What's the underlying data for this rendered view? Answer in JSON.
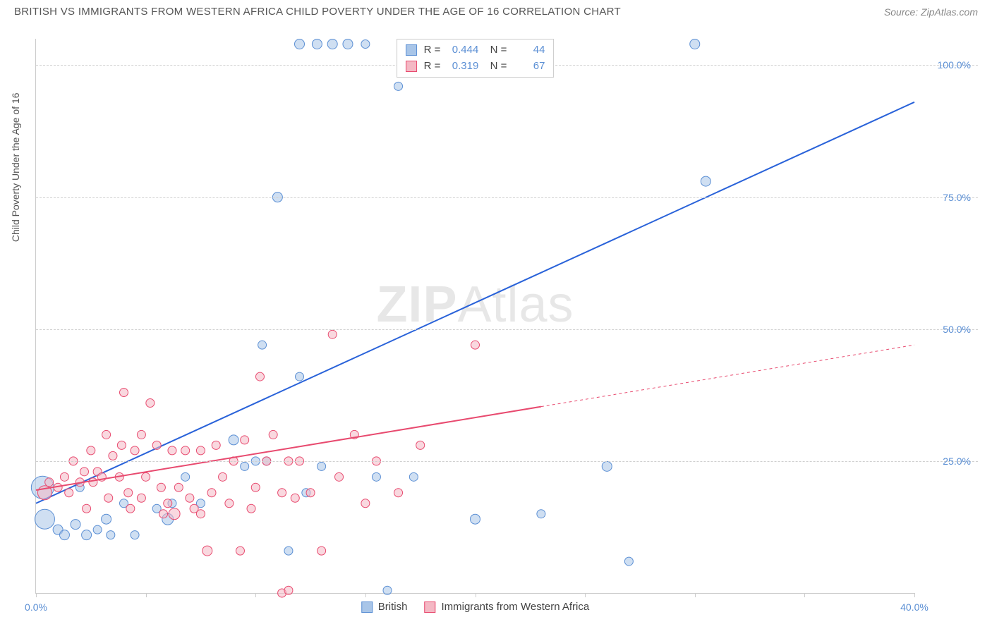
{
  "title": "BRITISH VS IMMIGRANTS FROM WESTERN AFRICA CHILD POVERTY UNDER THE AGE OF 16 CORRELATION CHART",
  "source": "Source: ZipAtlas.com",
  "watermark_prefix": "ZIP",
  "watermark_suffix": "Atlas",
  "y_axis_label": "Child Poverty Under the Age of 16",
  "chart": {
    "type": "scatter",
    "background_color": "#ffffff",
    "grid_color": "#d0d0d0",
    "axis_color": "#cccccc",
    "xlim": [
      0,
      40
    ],
    "ylim": [
      0,
      105
    ],
    "x_ticks": [
      0,
      5,
      10,
      15,
      20,
      25,
      30,
      35,
      40
    ],
    "x_tick_labels": {
      "0": "0.0%",
      "40": "40.0%"
    },
    "y_ticks": [
      25,
      50,
      75,
      100
    ],
    "y_tick_labels": {
      "25": "25.0%",
      "50": "50.0%",
      "75": "75.0%",
      "100": "100.0%"
    },
    "tick_label_color": "#5b8fd4",
    "tick_fontsize": 14,
    "series": [
      {
        "name": "British",
        "marker_fill": "#a8c5e8",
        "marker_stroke": "#5b8fd4",
        "marker_opacity": 0.55,
        "line_color": "#2962d9",
        "line_width": 2,
        "R": "0.444",
        "N": "44",
        "trend": {
          "x1": 0,
          "y1": 17,
          "x2": 40,
          "y2": 93,
          "dash_from_x": 40
        },
        "points": [
          {
            "x": 0.3,
            "y": 20,
            "r": 16
          },
          {
            "x": 0.4,
            "y": 14,
            "r": 14
          },
          {
            "x": 1.0,
            "y": 12,
            "r": 7
          },
          {
            "x": 1.3,
            "y": 11,
            "r": 7
          },
          {
            "x": 1.8,
            "y": 13,
            "r": 7
          },
          {
            "x": 2.0,
            "y": 20,
            "r": 6
          },
          {
            "x": 2.3,
            "y": 11,
            "r": 7
          },
          {
            "x": 2.8,
            "y": 12,
            "r": 6
          },
          {
            "x": 3.2,
            "y": 14,
            "r": 7
          },
          {
            "x": 3.4,
            "y": 11,
            "r": 6
          },
          {
            "x": 4.0,
            "y": 17,
            "r": 6
          },
          {
            "x": 4.5,
            "y": 11,
            "r": 6
          },
          {
            "x": 5.5,
            "y": 16,
            "r": 6
          },
          {
            "x": 6.0,
            "y": 14,
            "r": 8
          },
          {
            "x": 6.2,
            "y": 17,
            "r": 6
          },
          {
            "x": 6.8,
            "y": 22,
            "r": 6
          },
          {
            "x": 7.5,
            "y": 17,
            "r": 6
          },
          {
            "x": 9.0,
            "y": 29,
            "r": 7
          },
          {
            "x": 9.5,
            "y": 24,
            "r": 6
          },
          {
            "x": 10.0,
            "y": 25,
            "r": 6
          },
          {
            "x": 10.3,
            "y": 47,
            "r": 6
          },
          {
            "x": 10.5,
            "y": 25,
            "r": 6
          },
          {
            "x": 11.0,
            "y": 75,
            "r": 7
          },
          {
            "x": 11.5,
            "y": 8,
            "r": 6
          },
          {
            "x": 12.0,
            "y": 41,
            "r": 6
          },
          {
            "x": 12.3,
            "y": 19,
            "r": 6
          },
          {
            "x": 12.0,
            "y": 104,
            "r": 7
          },
          {
            "x": 12.8,
            "y": 104,
            "r": 7
          },
          {
            "x": 13.5,
            "y": 104,
            "r": 7
          },
          {
            "x": 14.2,
            "y": 104,
            "r": 7
          },
          {
            "x": 15.0,
            "y": 104,
            "r": 6
          },
          {
            "x": 15.5,
            "y": 22,
            "r": 6
          },
          {
            "x": 16.0,
            "y": 0.5,
            "r": 6
          },
          {
            "x": 16.5,
            "y": 96,
            "r": 6
          },
          {
            "x": 16.8,
            "y": 104,
            "r": 7
          },
          {
            "x": 17.2,
            "y": 22,
            "r": 6
          },
          {
            "x": 18.0,
            "y": 104,
            "r": 6
          },
          {
            "x": 20.0,
            "y": 14,
            "r": 7
          },
          {
            "x": 26.0,
            "y": 24,
            "r": 7
          },
          {
            "x": 27.0,
            "y": 6,
            "r": 6
          },
          {
            "x": 30.0,
            "y": 104,
            "r": 7
          },
          {
            "x": 30.5,
            "y": 78,
            "r": 7
          },
          {
            "x": 23.0,
            "y": 15,
            "r": 6
          },
          {
            "x": 13.0,
            "y": 24,
            "r": 6
          }
        ]
      },
      {
        "name": "Immigrants from Western Africa",
        "marker_fill": "#f4b8c4",
        "marker_stroke": "#e84a6f",
        "marker_opacity": 0.55,
        "line_color": "#e84a6f",
        "line_width": 2,
        "R": "0.319",
        "N": "67",
        "trend": {
          "x1": 0,
          "y1": 19.5,
          "x2": 40,
          "y2": 47,
          "dash_from_x": 23
        },
        "points": [
          {
            "x": 0.4,
            "y": 19,
            "r": 10
          },
          {
            "x": 0.6,
            "y": 21,
            "r": 6
          },
          {
            "x": 1.0,
            "y": 20,
            "r": 6
          },
          {
            "x": 1.3,
            "y": 22,
            "r": 6
          },
          {
            "x": 1.5,
            "y": 19,
            "r": 6
          },
          {
            "x": 1.7,
            "y": 25,
            "r": 6
          },
          {
            "x": 2.0,
            "y": 21,
            "r": 6
          },
          {
            "x": 2.2,
            "y": 23,
            "r": 6
          },
          {
            "x": 2.5,
            "y": 27,
            "r": 6
          },
          {
            "x": 2.6,
            "y": 21,
            "r": 6
          },
          {
            "x": 2.8,
            "y": 23,
            "r": 6
          },
          {
            "x": 3.0,
            "y": 22,
            "r": 6
          },
          {
            "x": 3.2,
            "y": 30,
            "r": 6
          },
          {
            "x": 3.3,
            "y": 18,
            "r": 6
          },
          {
            "x": 3.5,
            "y": 26,
            "r": 6
          },
          {
            "x": 3.8,
            "y": 22,
            "r": 6
          },
          {
            "x": 4.0,
            "y": 38,
            "r": 6
          },
          {
            "x": 4.2,
            "y": 19,
            "r": 6
          },
          {
            "x": 4.3,
            "y": 16,
            "r": 6
          },
          {
            "x": 4.5,
            "y": 27,
            "r": 6
          },
          {
            "x": 4.8,
            "y": 18,
            "r": 6
          },
          {
            "x": 5.0,
            "y": 22,
            "r": 6
          },
          {
            "x": 5.2,
            "y": 36,
            "r": 6
          },
          {
            "x": 5.5,
            "y": 28,
            "r": 6
          },
          {
            "x": 5.7,
            "y": 20,
            "r": 6
          },
          {
            "x": 5.8,
            "y": 15,
            "r": 6
          },
          {
            "x": 6.0,
            "y": 17,
            "r": 6
          },
          {
            "x": 6.2,
            "y": 27,
            "r": 6
          },
          {
            "x": 6.3,
            "y": 15,
            "r": 8
          },
          {
            "x": 6.5,
            "y": 20,
            "r": 6
          },
          {
            "x": 6.8,
            "y": 27,
            "r": 6
          },
          {
            "x": 7.0,
            "y": 18,
            "r": 6
          },
          {
            "x": 7.2,
            "y": 16,
            "r": 6
          },
          {
            "x": 7.5,
            "y": 15,
            "r": 6
          },
          {
            "x": 7.5,
            "y": 27,
            "r": 6
          },
          {
            "x": 7.8,
            "y": 8,
            "r": 7
          },
          {
            "x": 8.0,
            "y": 19,
            "r": 6
          },
          {
            "x": 8.2,
            "y": 28,
            "r": 6
          },
          {
            "x": 8.5,
            "y": 22,
            "r": 6
          },
          {
            "x": 8.8,
            "y": 17,
            "r": 6
          },
          {
            "x": 9.0,
            "y": 25,
            "r": 6
          },
          {
            "x": 9.3,
            "y": 8,
            "r": 6
          },
          {
            "x": 9.5,
            "y": 29,
            "r": 6
          },
          {
            "x": 9.8,
            "y": 16,
            "r": 6
          },
          {
            "x": 10.0,
            "y": 20,
            "r": 6
          },
          {
            "x": 10.2,
            "y": 41,
            "r": 6
          },
          {
            "x": 10.5,
            "y": 25,
            "r": 6
          },
          {
            "x": 10.8,
            "y": 30,
            "r": 6
          },
          {
            "x": 11.2,
            "y": 19,
            "r": 6
          },
          {
            "x": 11.2,
            "y": 0.0,
            "r": 6
          },
          {
            "x": 11.5,
            "y": 0.5,
            "r": 6
          },
          {
            "x": 11.5,
            "y": 25,
            "r": 6
          },
          {
            "x": 11.8,
            "y": 18,
            "r": 6
          },
          {
            "x": 12.0,
            "y": 25,
            "r": 6
          },
          {
            "x": 12.5,
            "y": 19,
            "r": 6
          },
          {
            "x": 13.0,
            "y": 8,
            "r": 6
          },
          {
            "x": 13.5,
            "y": 49,
            "r": 6
          },
          {
            "x": 13.8,
            "y": 22,
            "r": 6
          },
          {
            "x": 14.5,
            "y": 30,
            "r": 6
          },
          {
            "x": 15.0,
            "y": 17,
            "r": 6
          },
          {
            "x": 15.5,
            "y": 25,
            "r": 6
          },
          {
            "x": 16.5,
            "y": 19,
            "r": 6
          },
          {
            "x": 17.5,
            "y": 28,
            "r": 6
          },
          {
            "x": 20.0,
            "y": 47,
            "r": 6
          },
          {
            "x": 4.8,
            "y": 30,
            "r": 6
          },
          {
            "x": 3.9,
            "y": 28,
            "r": 6
          },
          {
            "x": 2.3,
            "y": 16,
            "r": 6
          }
        ]
      }
    ]
  },
  "stats_legend": {
    "R_label": "R =",
    "N_label": "N ="
  },
  "bottom_legend": {
    "british": "British",
    "immigrants": "Immigrants from Western Africa"
  }
}
